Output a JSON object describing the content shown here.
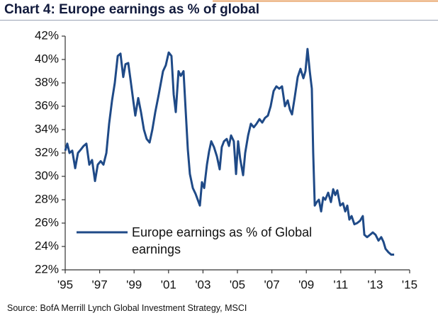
{
  "chart_data": {
    "type": "line",
    "title": "Chart 4: Europe earnings as % of global",
    "source": "Source: BofA Merrill Lynch Global Investment Strategy, MSCI",
    "xlim": [
      1995,
      2015
    ],
    "xticks": [
      {
        "value": 1995,
        "label": "'95"
      },
      {
        "value": 1997,
        "label": "'97"
      },
      {
        "value": 1999,
        "label": "'99"
      },
      {
        "value": 2001,
        "label": "'01"
      },
      {
        "value": 2003,
        "label": "'03"
      },
      {
        "value": 2005,
        "label": "'05"
      },
      {
        "value": 2007,
        "label": "'07"
      },
      {
        "value": 2009,
        "label": "'09"
      },
      {
        "value": 2011,
        "label": "'11"
      },
      {
        "value": 2013,
        "label": "'13"
      },
      {
        "value": 2015,
        "label": "'15"
      }
    ],
    "ylim": [
      22,
      42
    ],
    "yticks": [
      {
        "value": 22,
        "label": "22%"
      },
      {
        "value": 24,
        "label": "24%"
      },
      {
        "value": 26,
        "label": "26%"
      },
      {
        "value": 28,
        "label": "28%"
      },
      {
        "value": 30,
        "label": "30%"
      },
      {
        "value": 32,
        "label": "32%"
      },
      {
        "value": 34,
        "label": "34%"
      },
      {
        "value": 36,
        "label": "36%"
      },
      {
        "value": 38,
        "label": "38%"
      },
      {
        "value": 40,
        "label": "40%"
      },
      {
        "value": 42,
        "label": "42%"
      }
    ],
    "grid": false,
    "legend": "lower left",
    "x": [
      1995.0,
      1995.12,
      1995.25,
      1995.41,
      1995.58,
      1995.74,
      1995.91,
      1996.07,
      1996.23,
      1996.4,
      1996.56,
      1996.73,
      1996.89,
      1997.06,
      1997.22,
      1997.39,
      1997.55,
      1997.72,
      1997.88,
      1998.05,
      1998.21,
      1998.37,
      1998.5,
      1998.66,
      1998.79,
      1998.95,
      1999.07,
      1999.24,
      1999.4,
      1999.57,
      1999.73,
      1999.9,
      2000.06,
      2000.23,
      2000.43,
      2000.68,
      2000.84,
      2001.01,
      2001.17,
      2001.3,
      2001.42,
      2001.58,
      2001.71,
      2001.87,
      2002.0,
      2002.12,
      2002.24,
      2002.41,
      2002.57,
      2002.82,
      2002.94,
      2003.07,
      2003.23,
      2003.35,
      2003.48,
      2003.64,
      2003.81,
      2003.97,
      2004.09,
      2004.22,
      2004.38,
      2004.51,
      2004.63,
      2004.79,
      2004.92,
      2005.04,
      2005.16,
      2005.33,
      2005.45,
      2005.62,
      2005.78,
      2005.95,
      2006.11,
      2006.28,
      2006.44,
      2006.6,
      2006.77,
      2006.93,
      2007.1,
      2007.26,
      2007.43,
      2007.59,
      2007.76,
      2007.92,
      2008.05,
      2008.17,
      2008.33,
      2008.5,
      2008.66,
      2008.83,
      2008.95,
      2009.07,
      2009.2,
      2009.32,
      2009.4,
      2009.49,
      2009.61,
      2009.73,
      2009.86,
      2009.98,
      2010.1,
      2010.27,
      2010.43,
      2010.56,
      2010.68,
      2010.8,
      2010.97,
      2011.13,
      2011.26,
      2011.38,
      2011.5,
      2011.63,
      2011.79,
      2011.95,
      2012.12,
      2012.28,
      2012.37,
      2012.53,
      2012.7,
      2012.86,
      2013.02,
      2013.19,
      2013.35,
      2013.48,
      2013.6,
      2013.77,
      2013.93,
      2014.1
    ],
    "series": [
      {
        "name": "Europe earnings as % of Global earnings",
        "color": "#1f4a87",
        "values": [
          32.2,
          32.8,
          32.0,
          32.2,
          30.7,
          32.0,
          32.3,
          32.6,
          32.8,
          31.0,
          31.4,
          29.6,
          31.0,
          31.3,
          31.0,
          32.0,
          34.5,
          36.5,
          38.0,
          40.3,
          40.5,
          38.5,
          39.6,
          39.7,
          38.3,
          36.5,
          35.2,
          36.7,
          35.5,
          34.0,
          33.2,
          32.9,
          34.0,
          35.5,
          37.0,
          39.0,
          39.5,
          40.6,
          40.3,
          37.0,
          35.5,
          39.0,
          38.6,
          39.0,
          35.5,
          32.3,
          30.2,
          29.0,
          28.5,
          27.5,
          29.5,
          29.0,
          31.0,
          32.1,
          33.0,
          32.5,
          31.7,
          30.6,
          32.5,
          33.0,
          33.2,
          32.6,
          33.5,
          33.0,
          30.2,
          33.0,
          31.5,
          30.1,
          32.0,
          33.5,
          34.5,
          34.2,
          34.5,
          34.9,
          34.6,
          35.0,
          35.2,
          36.0,
          37.3,
          37.7,
          37.5,
          37.7,
          36.0,
          36.5,
          35.7,
          35.3,
          36.8,
          38.5,
          39.2,
          38.4,
          39.0,
          40.9,
          39.0,
          37.5,
          32.0,
          27.5,
          27.8,
          28.0,
          27.0,
          28.2,
          28.0,
          28.6,
          27.8,
          28.9,
          28.4,
          28.8,
          27.5,
          27.7,
          27.0,
          27.5,
          26.3,
          26.6,
          25.9,
          26.0,
          26.2,
          26.6,
          25.0,
          24.8,
          25.0,
          25.2,
          25.0,
          24.5,
          24.8,
          24.4,
          23.8,
          23.5,
          23.3,
          23.3
        ]
      }
    ]
  }
}
